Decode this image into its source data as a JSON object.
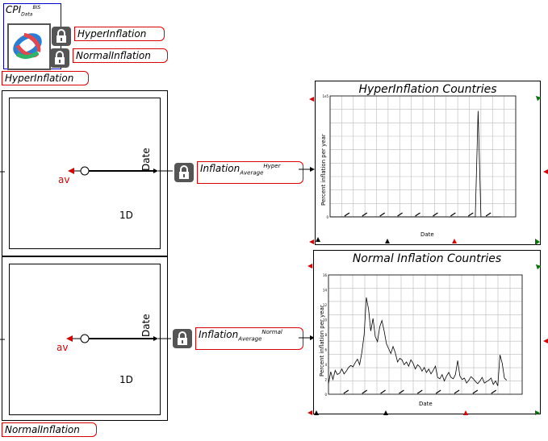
{
  "cpi_box": {
    "label_main": "CPI",
    "label_sub": "Data",
    "label_sup": "BIS"
  },
  "vars": {
    "hyper": "HyperInflation",
    "normal": "NormalInflation"
  },
  "groups": {
    "hyper_label": "HyperInflation",
    "normal_label": "NormalInflation"
  },
  "operations": {
    "top": {
      "av": "av",
      "date": "Date",
      "dim": "1D"
    },
    "bottom": {
      "av": "av",
      "date": "Date",
      "dim": "1D"
    }
  },
  "outputs": {
    "hyper": {
      "main": "Inflation",
      "sub": "Average",
      "sup": "Hyper"
    },
    "normal": {
      "main": "Inflation",
      "sub": "Average",
      "sup": "Normal"
    }
  },
  "chart_data": [
    {
      "type": "line",
      "title": "HyperInflation Countries",
      "xlabel": "Date",
      "ylabel": "Percent inflation per year",
      "y_ticks": [
        "1e5",
        "",
        "",
        "0"
      ],
      "x": [
        0,
        1,
        2,
        3,
        4,
        5,
        6,
        7,
        8,
        9,
        10,
        11,
        12,
        13,
        14,
        15,
        16,
        17,
        18,
        19,
        20,
        21,
        22,
        23,
        24,
        25,
        26,
        27,
        28,
        29,
        30,
        31,
        32,
        33,
        34,
        35,
        36,
        37,
        38,
        39,
        40,
        41,
        42,
        43,
        44,
        45,
        46,
        47,
        48,
        49,
        50,
        51,
        52,
        53,
        54,
        55,
        56,
        57,
        58,
        59,
        60
      ],
      "values": [
        0,
        0,
        0,
        0,
        0,
        0,
        0,
        0,
        0,
        0,
        0,
        0,
        0,
        0,
        0,
        0,
        0,
        0,
        0,
        0,
        0,
        0,
        0,
        0,
        0,
        0,
        0,
        0,
        0,
        0,
        0,
        0,
        0,
        0,
        0,
        0,
        0,
        0,
        0,
        0,
        0,
        0,
        0,
        0,
        0,
        0,
        0,
        0,
        0,
        0,
        0,
        0,
        92,
        0,
        0,
        0,
        0,
        0,
        0,
        0,
        0
      ],
      "ylim": [
        0,
        105
      ],
      "grid": true
    },
    {
      "type": "line",
      "title": "Normal Inflation Countries",
      "xlabel": "Date",
      "ylabel": "Percent inflation per year",
      "y_ticks": [
        "16",
        "14",
        "12",
        "10",
        "8",
        "6",
        "4",
        "2",
        "0"
      ],
      "x": [
        0,
        1,
        2,
        3,
        4,
        5,
        6,
        7,
        8,
        9,
        10,
        11,
        12,
        13,
        14,
        15,
        16,
        17,
        18,
        19,
        20,
        21,
        22,
        23,
        24,
        25,
        26,
        27,
        28,
        29,
        30,
        31,
        32,
        33,
        34,
        35,
        36,
        37,
        38,
        39,
        40,
        41,
        42,
        43,
        44,
        45,
        46,
        47,
        48,
        49,
        50,
        51,
        52,
        53,
        54,
        55,
        56,
        57,
        58,
        59,
        60,
        61,
        62,
        63,
        64,
        65,
        66,
        67,
        68,
        69,
        70,
        71,
        72,
        73,
        74,
        75,
        76,
        77,
        78,
        79,
        80
      ],
      "values": [
        1.5,
        3.2,
        2.1,
        3.4,
        2.8,
        3.0,
        3.6,
        2.9,
        3.3,
        3.8,
        4.1,
        3.9,
        4.5,
        5.0,
        4.2,
        6.0,
        8.5,
        13.8,
        12.1,
        9.0,
        10.8,
        8.2,
        7.5,
        9.6,
        10.5,
        9.0,
        7.2,
        6.5,
        5.8,
        6.8,
        5.9,
        4.6,
        5.1,
        4.9,
        4.2,
        4.6,
        4.0,
        4.9,
        4.4,
        3.6,
        4.2,
        3.9,
        3.3,
        3.8,
        3.1,
        3.6,
        2.9,
        3.4,
        4.0,
        2.4,
        2.2,
        2.8,
        1.9,
        2.6,
        3.1,
        2.4,
        2.2,
        2.8,
        4.8,
        2.6,
        2.1,
        2.3,
        1.6,
        2.0,
        2.5,
        2.2,
        1.8,
        1.5,
        1.9,
        2.4,
        1.6,
        1.8,
        2.0,
        2.3,
        1.4,
        1.9,
        1.2,
        5.6,
        4.4,
        2.3,
        2.0
      ],
      "ylim": [
        0,
        17
      ],
      "grid": true
    }
  ]
}
